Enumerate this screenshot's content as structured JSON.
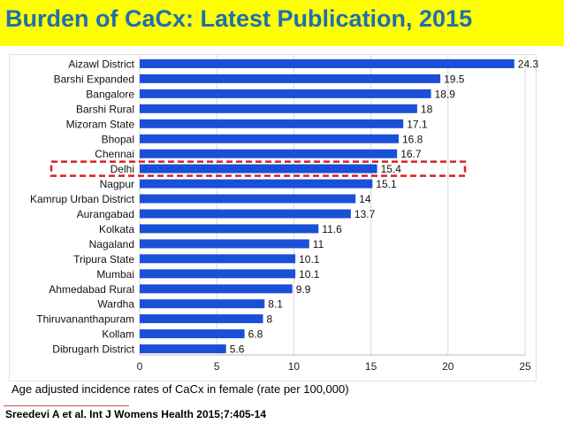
{
  "header": {
    "title": "Burden of CaCx: Latest Publication, 2015",
    "background_color": "#ffff00",
    "title_color": "#1f6fb0"
  },
  "caption": "Age adjusted incidence rates of CaCx in female  (rate per 100,000)",
  "source": "Sreedevi A et al. Int J Womens Health 2015;7:405-14",
  "chart_data": {
    "type": "bar",
    "orientation": "horizontal",
    "title": "",
    "xlabel": "",
    "ylabel": "",
    "categories": [
      "Aizawl District",
      "Barshi Expanded",
      "Bangalore",
      "Barshi Rural",
      "Mizoram State",
      "Bhopal",
      "Chennai",
      "Delhi",
      "Nagpur",
      "Kamrup Urban District",
      "Aurangabad",
      "Kolkata",
      "Nagaland",
      "Tripura State",
      "Mumbai",
      "Ahmedabad Rural",
      "Wardha",
      "Thiruvananthapuram",
      "Kollam",
      "Dibrugarh District"
    ],
    "values": [
      24.3,
      19.5,
      18.9,
      18,
      17.1,
      16.8,
      16.7,
      15.4,
      15.1,
      14,
      13.7,
      11.6,
      11,
      10.1,
      10.1,
      9.9,
      8.1,
      8,
      6.8,
      5.6
    ],
    "value_labels": [
      "24.3",
      "19.5",
      "18.9",
      "18",
      "17.1",
      "16.8",
      "16.7",
      "15.4",
      "15.1",
      "14",
      "13.7",
      "11.6",
      "11",
      "10.1",
      "10.1",
      "9.9",
      "8.1",
      "8",
      "6.8",
      "5.6"
    ],
    "xlim": [
      0,
      25
    ],
    "xticks": [
      "0",
      "5",
      "10",
      "15",
      "20",
      "25"
    ],
    "grid": true,
    "bar_color": "#1a4fd8",
    "highlight": {
      "category": "Delhi",
      "style": "dashed box",
      "color": "#d62020"
    }
  }
}
